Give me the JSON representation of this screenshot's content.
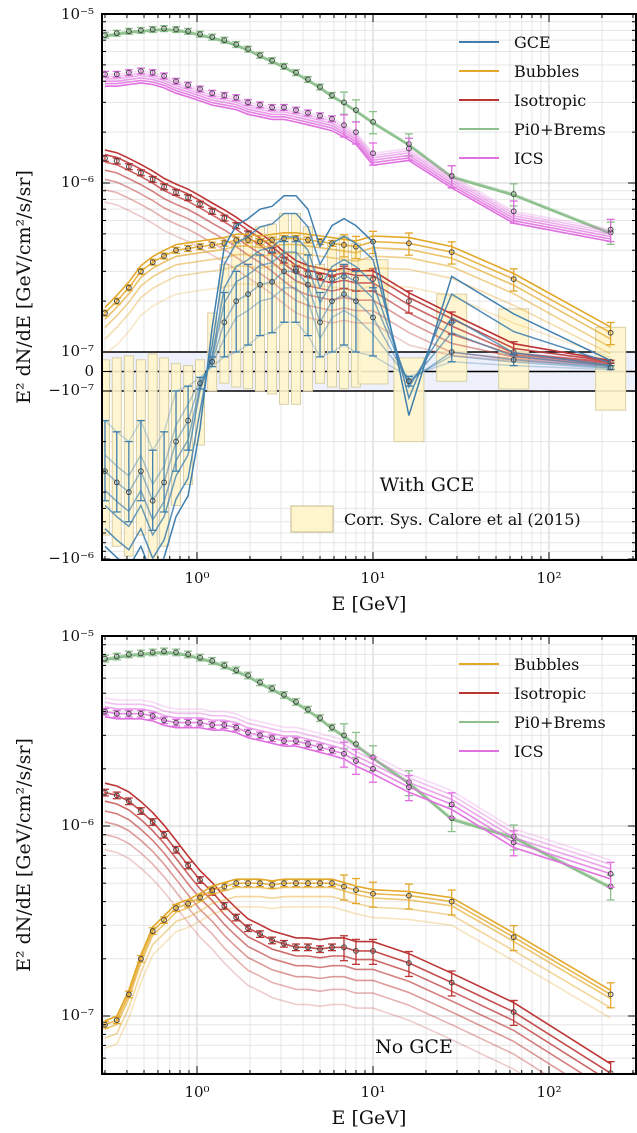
{
  "colors": {
    "GCE": "#3f7fae",
    "Bubbles": "#e3a82a",
    "Isotropic": "#bd3434",
    "Pi0+Brems": "#8cc08c",
    "ICS": "#e06fe0",
    "sys_fill": "#fff5cc",
    "band_fill": "#eef0fb"
  },
  "chart_data": [
    {
      "type": "line",
      "panel": "top",
      "annotation": "With GCE",
      "xlabel": "E [GeV]",
      "ylabel": "E² dN/dE [GeV/cm²/s/sr]",
      "x_scale": "log",
      "y_scale": "symlog",
      "xlim": [
        0.3,
        250
      ],
      "ylim": [
        -1e-06,
        1e-05
      ],
      "linthresh": 1e-07,
      "x_tick_labels": [
        "10⁰",
        "10¹",
        "10²"
      ],
      "y_tick_labels": [
        "10⁻⁵",
        "10⁻⁶",
        "10⁻⁷",
        "0",
        "−10⁻⁷",
        "−10⁻⁶"
      ],
      "legend_position": "top-right",
      "legend": [
        "GCE",
        "Bubbles",
        "Isotropic",
        "Pi0+Brems",
        "ICS"
      ],
      "sys_legend": "Corr. Sys. Calore et al (2015)",
      "grid": true,
      "x": [
        0.3,
        0.35,
        0.41,
        0.48,
        0.56,
        0.65,
        0.76,
        0.89,
        1.04,
        1.22,
        1.43,
        1.67,
        1.95,
        2.28,
        2.67,
        3.12,
        3.65,
        4.27,
        5.0,
        5.85,
        6.84,
        8.0,
        10.0,
        16.0,
        28.0,
        63.0,
        224.0
      ],
      "series": [
        {
          "name": "Pi0+Brems",
          "values": [
            7.5e-06,
            7.7e-06,
            7.9e-06,
            8e-06,
            8.1e-06,
            8.2e-06,
            8.1e-06,
            7.9e-06,
            7.6e-06,
            7.3e-06,
            7e-06,
            6.6e-06,
            6.2e-06,
            5.7e-06,
            5.3e-06,
            4.9e-06,
            4.5e-06,
            4.1e-06,
            3.7e-06,
            3.3e-06,
            3e-06,
            2.7e-06,
            2.3e-06,
            1.7e-06,
            1.1e-06,
            8.6e-07,
            5.1e-07
          ]
        },
        {
          "name": "ICS",
          "values": [
            4.4e-06,
            4.4e-06,
            4.5e-06,
            4.6e-06,
            4.5e-06,
            4.3e-06,
            4e-06,
            3.8e-06,
            3.6e-06,
            3.4e-06,
            3.3e-06,
            3.2e-06,
            3e-06,
            2.9e-06,
            2.8e-06,
            2.8e-06,
            2.7e-06,
            2.6e-06,
            2.5e-06,
            2.4e-06,
            2.2e-06,
            2e-06,
            1.5e-06,
            1.6e-06,
            1.1e-06,
            6.8e-07,
            5.3e-07
          ]
        },
        {
          "name": "Isotropic",
          "values": [
            1.4e-06,
            1.35e-06,
            1.25e-06,
            1.15e-06,
            1.05e-06,
            9.5e-07,
            8.8e-07,
            8.2e-07,
            7.5e-07,
            6.8e-07,
            6.2e-07,
            5.6e-07,
            5e-07,
            4.5e-07,
            4e-07,
            3.5e-07,
            3.1e-07,
            2.9e-07,
            2.8e-07,
            2.7e-07,
            2.8e-07,
            2.7e-07,
            2.7e-07,
            2e-07,
            1.5e-07,
            1e-07,
            5e-08
          ]
        },
        {
          "name": "Bubbles",
          "values": [
            1.7e-07,
            2e-07,
            2.4e-07,
            3e-07,
            3.4e-07,
            3.7e-07,
            4e-07,
            4.1e-07,
            4.2e-07,
            4.3e-07,
            4.4e-07,
            4.6e-07,
            4.6e-07,
            4.5e-07,
            4.6e-07,
            4.7e-07,
            4.7e-07,
            4.6e-07,
            4.5e-07,
            4.4e-07,
            4.3e-07,
            4.2e-07,
            4.5e-07,
            4.4e-07,
            3.9e-07,
            2.7e-07,
            1.3e-07
          ]
        },
        {
          "name": "GCE",
          "values": [
            -3e-07,
            -3.5e-07,
            -4e-07,
            -3e-07,
            -4.5e-07,
            -3.5e-07,
            -2e-07,
            -1.5e-07,
            -6e-08,
            5e-08,
            1.5e-07,
            2e-07,
            2.2e-07,
            2.5e-07,
            2.6e-07,
            3e-07,
            3e-07,
            2.5e-07,
            1.5e-07,
            2e-07,
            2.2e-07,
            2e-07,
            1.6e-07,
            -5e-08,
            1e-07,
            6e-08,
            2e-08
          ]
        }
      ]
    },
    {
      "type": "line",
      "panel": "bottom",
      "annotation": "No GCE",
      "xlabel": "E [GeV]",
      "ylabel": "E² dN/dE [GeV/cm²/s/sr]",
      "x_scale": "log",
      "y_scale": "log",
      "xlim": [
        0.3,
        250
      ],
      "ylim": [
        5e-08,
        1e-05
      ],
      "x_tick_labels": [
        "10⁰",
        "10¹",
        "10²"
      ],
      "y_tick_labels": [
        "10⁻⁵",
        "10⁻⁶",
        "10⁻⁷"
      ],
      "legend_position": "top-right",
      "legend": [
        "Bubbles",
        "Isotropic",
        "Pi0+Brems",
        "ICS"
      ],
      "grid": true,
      "x": [
        0.3,
        0.35,
        0.41,
        0.48,
        0.56,
        0.65,
        0.76,
        0.89,
        1.04,
        1.22,
        1.43,
        1.67,
        1.95,
        2.28,
        2.67,
        3.12,
        3.65,
        4.27,
        5.0,
        5.85,
        6.84,
        8.0,
        10.0,
        16.0,
        28.0,
        63.0,
        224.0
      ],
      "series": [
        {
          "name": "Pi0+Brems",
          "values": [
            7.6e-06,
            7.8e-06,
            8e-06,
            8.1e-06,
            8.2e-06,
            8.3e-06,
            8.2e-06,
            8e-06,
            7.7e-06,
            7.4e-06,
            7e-06,
            6.6e-06,
            6.2e-06,
            5.7e-06,
            5.3e-06,
            4.9e-06,
            4.5e-06,
            4.1e-06,
            3.7e-06,
            3.3e-06,
            3e-06,
            2.7e-06,
            2.3e-06,
            1.7e-06,
            1.1e-06,
            8.8e-07,
            4.8e-07
          ]
        },
        {
          "name": "ICS",
          "values": [
            4e-06,
            3.9e-06,
            3.9e-06,
            3.9e-06,
            3.8e-06,
            3.6e-06,
            3.5e-06,
            3.5e-06,
            3.5e-06,
            3.4e-06,
            3.4e-06,
            3.3e-06,
            3.1e-06,
            3e-06,
            2.9e-06,
            2.8e-06,
            2.8e-06,
            2.7e-06,
            2.6e-06,
            2.5e-06,
            2.4e-06,
            2.2e-06,
            2e-06,
            1.6e-06,
            1.3e-06,
            8.2e-07,
            5.6e-07
          ]
        },
        {
          "name": "Isotropic",
          "values": [
            1.5e-06,
            1.45e-06,
            1.35e-06,
            1.2e-06,
            1.05e-06,
            9e-07,
            7.5e-07,
            6.2e-07,
            5.2e-07,
            4.5e-07,
            3.8e-07,
            3.3e-07,
            2.9e-07,
            2.7e-07,
            2.5e-07,
            2.4e-07,
            2.3e-07,
            2.3e-07,
            2.25e-07,
            2.3e-07,
            2.3e-07,
            2.2e-07,
            2.2e-07,
            1.9e-07,
            1.5e-07,
            1.05e-07,
            5e-08
          ]
        },
        {
          "name": "Bubbles",
          "values": [
            9e-08,
            9.5e-08,
            1.3e-07,
            2e-07,
            2.8e-07,
            3.2e-07,
            3.7e-07,
            3.9e-07,
            4.2e-07,
            4.6e-07,
            4.8e-07,
            5e-07,
            5e-07,
            5e-07,
            4.9e-07,
            5e-07,
            5e-07,
            5e-07,
            5e-07,
            5e-07,
            4.8e-07,
            4.6e-07,
            4.4e-07,
            4.3e-07,
            4e-07,
            2.6e-07,
            1.3e-07
          ]
        }
      ]
    }
  ]
}
